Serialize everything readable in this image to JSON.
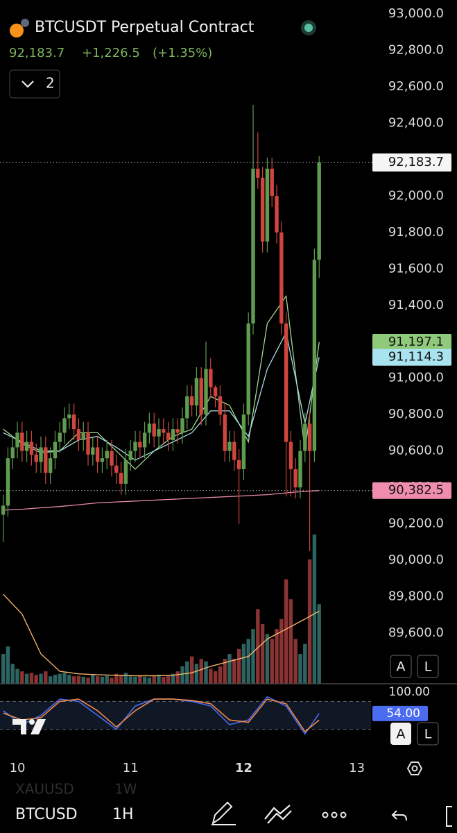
{
  "header": {
    "title": "BTCUSDT Perpetual Contract",
    "price": "92,183.7",
    "change": "+1,226.5",
    "change_pct": "(+1.35%)",
    "indicator_count": "2"
  },
  "chart_data": [
    {
      "type": "candlestick",
      "x": [
        -3,
        -2,
        -1,
        0,
        1,
        2,
        3,
        4,
        5,
        6,
        7,
        8,
        9,
        10,
        11,
        12,
        13,
        14,
        15,
        16,
        17,
        18,
        19,
        20,
        21,
        22,
        23,
        24,
        25,
        26,
        27,
        28,
        29,
        30,
        31,
        32,
        33,
        34,
        35,
        36,
        37,
        38,
        39,
        40,
        41,
        42,
        43,
        44,
        45,
        46,
        47,
        48,
        49,
        50,
        51,
        52,
        53,
        54,
        55,
        56,
        57,
        58,
        59,
        60,
        61,
        62,
        63,
        64
      ],
      "open": [
        90250,
        90300,
        90560,
        90620,
        90700,
        90600,
        90650,
        90580,
        90540,
        90620,
        90480,
        90560,
        90650,
        90700,
        90780,
        90800,
        90720,
        90660,
        90700,
        90580,
        90620,
        90540,
        90560,
        90600,
        90520,
        90480,
        90420,
        90550,
        90600,
        90650,
        90620,
        90700,
        90750,
        90680,
        90720,
        90700,
        90660,
        90720,
        90700,
        90780,
        90900,
        90850,
        91000,
        90800,
        91050,
        90950,
        90900,
        90800,
        90600,
        90650,
        90550,
        90500,
        90800,
        91300,
        92150,
        92100,
        91750,
        92150,
        92000,
        91800,
        91300,
        90650,
        90500,
        90400,
        90600,
        90750,
        90600,
        91650
      ],
      "high": [
        90360,
        90620,
        90680,
        90760,
        90760,
        90710,
        90710,
        90640,
        90680,
        90680,
        90620,
        90710,
        90760,
        90840,
        90860,
        90860,
        90780,
        90760,
        90760,
        90680,
        90680,
        90620,
        90660,
        90660,
        90580,
        90540,
        90610,
        90660,
        90710,
        90710,
        90760,
        90810,
        90810,
        90780,
        90780,
        90760,
        90780,
        90780,
        90840,
        90960,
        90960,
        91060,
        91060,
        91200,
        91110,
        90960,
        90960,
        90860,
        90710,
        90710,
        90610,
        90860,
        91360,
        92500,
        92350,
        92160,
        92210,
        92210,
        92060,
        91860,
        91360,
        90710,
        90560,
        90660,
        90810,
        90810,
        91710,
        92220
      ],
      "low": [
        90100,
        90240,
        90500,
        90560,
        90540,
        90540,
        90520,
        90480,
        90480,
        90420,
        90420,
        90500,
        90590,
        90640,
        90720,
        90660,
        90600,
        90600,
        90520,
        90520,
        90480,
        90480,
        90500,
        90460,
        90420,
        90360,
        90360,
        90490,
        90540,
        90560,
        90560,
        90640,
        90620,
        90620,
        90640,
        90600,
        90600,
        90640,
        90640,
        90720,
        90790,
        90790,
        90740,
        90740,
        90890,
        90840,
        90740,
        90540,
        90540,
        90490,
        90200,
        90440,
        90740,
        91240,
        92040,
        91690,
        91690,
        91940,
        91740,
        91240,
        90350,
        90350,
        90340,
        90340,
        90540,
        90050,
        90540,
        91550
      ],
      "close": [
        90300,
        90560,
        90620,
        90700,
        90600,
        90650,
        90580,
        90540,
        90620,
        90480,
        90560,
        90650,
        90700,
        90780,
        90800,
        90720,
        90660,
        90700,
        90580,
        90620,
        90540,
        90560,
        90600,
        90520,
        90480,
        90420,
        90550,
        90600,
        90650,
        90620,
        90700,
        90750,
        90680,
        90720,
        90700,
        90660,
        90720,
        90700,
        90780,
        90900,
        90850,
        91000,
        90800,
        91050,
        90950,
        90900,
        90800,
        90600,
        90650,
        90550,
        90500,
        90800,
        91300,
        92150,
        92100,
        91750,
        92150,
        92000,
        91800,
        91300,
        90650,
        90500,
        90400,
        90600,
        90750,
        90600,
        91650,
        92183.7
      ],
      "up_color": "#5f9c4f",
      "down_color": "#d0463f",
      "last_price_label": "92,183.7",
      "xlim": [
        -3.68,
        75
      ],
      "xticks": [
        {
          "value": 0,
          "label": "10"
        },
        {
          "value": 24,
          "label": "11"
        },
        {
          "value": 48,
          "label": "12"
        },
        {
          "value": 72,
          "label": "13"
        }
      ],
      "ylim": [
        89322,
        93076
      ],
      "yticks": [
        {
          "value": 93000,
          "label": "93,000.0"
        },
        {
          "value": 92800,
          "label": "92,800.0"
        },
        {
          "value": 92600,
          "label": "92,600.0"
        },
        {
          "value": 92400,
          "label": "92,400.0"
        },
        {
          "value": 92200,
          "label": "92,200.0"
        },
        {
          "value": 92000,
          "label": "92,000.0"
        },
        {
          "value": 91800,
          "label": "91,800.0"
        },
        {
          "value": 91600,
          "label": "91,600.0"
        },
        {
          "value": 91400,
          "label": "91,400.0"
        },
        {
          "value": 91200,
          "label": "91,200.0"
        },
        {
          "value": 91000,
          "label": "91,000.0"
        },
        {
          "value": 90800,
          "label": "90,800.0"
        },
        {
          "value": 90600,
          "label": "90,600.0"
        },
        {
          "value": 90400,
          "label": "90,400.0"
        },
        {
          "value": 90200,
          "label": "90,200.0"
        },
        {
          "value": 90000,
          "label": "90,000.0"
        },
        {
          "value": 89800,
          "label": "89,800.0"
        },
        {
          "value": 89600,
          "label": "89,600.0"
        }
      ],
      "lines": [
        {
          "color": "#a5d88f",
          "label_color": "#8fc97a",
          "last_label": "91,197.1",
          "x": [
            -3,
            1,
            5,
            9,
            13,
            17,
            21,
            25,
            29,
            33,
            37,
            41,
            45,
            49,
            53,
            57,
            61,
            64
          ],
          "values": [
            90720,
            90640,
            90590,
            90600,
            90700,
            90700,
            90600,
            90500,
            90600,
            90680,
            90720,
            90900,
            90850,
            90650,
            91300,
            91450,
            90600,
            91197.1
          ]
        },
        {
          "color": "#a9dfe8",
          "label_color": "#a8e3ef",
          "last_label": "91,114.3",
          "x": [
            -3,
            1,
            5,
            9,
            13,
            17,
            21,
            25,
            29,
            33,
            37,
            41,
            45,
            49,
            53,
            57,
            61,
            64
          ],
          "values": [
            90700,
            90650,
            90600,
            90600,
            90660,
            90680,
            90620,
            90550,
            90600,
            90650,
            90700,
            90820,
            90820,
            90680,
            91050,
            91250,
            90750,
            91114.3
          ]
        },
        {
          "color": "#e98aa8",
          "label_color": "#f08daf",
          "last_label": "90,382.5",
          "dotted": true,
          "x": [
            -3,
            1,
            5,
            9,
            13,
            17,
            21,
            25,
            29,
            33,
            37,
            41,
            45,
            49,
            53,
            57,
            61,
            64
          ],
          "values": [
            90275,
            90280,
            90288,
            90295,
            90305,
            90315,
            90320,
            90325,
            90330,
            90335,
            90340,
            90345,
            90350,
            90355,
            90360,
            90370,
            90378,
            90382.5
          ]
        }
      ],
      "volume": [
        60,
        75,
        40,
        30,
        25,
        20,
        22,
        18,
        20,
        25,
        15,
        18,
        20,
        22,
        18,
        15,
        16,
        14,
        12,
        18,
        15,
        14,
        16,
        12,
        20,
        18,
        22,
        15,
        14,
        16,
        14,
        12,
        15,
        18,
        14,
        16,
        20,
        25,
        35,
        45,
        55,
        40,
        50,
        45,
        30,
        25,
        35,
        50,
        60,
        50,
        70,
        80,
        90,
        110,
        150,
        120,
        100,
        90,
        110,
        130,
        210,
        170,
        90,
        60,
        80,
        250,
        300,
        160
      ],
      "vlim": [
        0,
        300
      ],
      "volume_up_color": "#2d6462",
      "volume_down_color": "#8a3333",
      "volume_ma": {
        "color": "#f2b36b",
        "x": [
          -3,
          1,
          5,
          9,
          13,
          17,
          21,
          25,
          29,
          33,
          37,
          41,
          45,
          49,
          53,
          57,
          61,
          64
        ],
        "values": [
          180,
          140,
          60,
          25,
          20,
          18,
          17,
          16,
          16,
          17,
          22,
          35,
          45,
          55,
          90,
          110,
          130,
          146
        ]
      }
    },
    {
      "type": "stochastic",
      "ylim": [
        -21,
        118
      ],
      "yticks": [
        {
          "value": 100,
          "label": "100.00"
        }
      ],
      "dashed_levels": [
        80,
        20
      ],
      "series": [
        {
          "color": "#4b6cf0",
          "last_label": "54.00",
          "x": [
            -3,
            1,
            5,
            9,
            13,
            17,
            21,
            25,
            29,
            33,
            37,
            41,
            45,
            49,
            53,
            57,
            61,
            64
          ],
          "values": [
            60,
            30,
            50,
            85,
            80,
            50,
            20,
            70,
            85,
            85,
            80,
            70,
            30,
            40,
            90,
            70,
            10,
            54
          ]
        },
        {
          "color": "#f08a4b",
          "x": [
            -3,
            1,
            5,
            9,
            13,
            17,
            21,
            25,
            29,
            33,
            37,
            41,
            45,
            49,
            53,
            57,
            61,
            64
          ],
          "values": [
            55,
            40,
            45,
            80,
            85,
            60,
            25,
            60,
            85,
            85,
            82,
            75,
            40,
            35,
            85,
            75,
            15,
            40
          ]
        }
      ]
    }
  ],
  "buttons": {
    "auto": "A",
    "log": "L"
  },
  "toolbar": {
    "symbol": "BTCUSD",
    "interval": "1H",
    "prev_symbol": "XAUUSD",
    "prev_interval": "1W"
  }
}
